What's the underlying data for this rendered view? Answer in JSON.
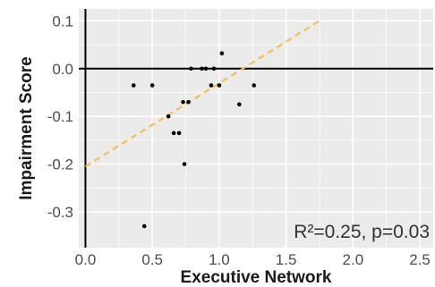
{
  "chart_data": {
    "type": "scatter",
    "xlabel": "Executive Network",
    "ylabel": "Impairment Score",
    "xlim": [
      -0.05,
      2.6
    ],
    "ylim": [
      -0.375,
      0.125
    ],
    "x_ticks": [
      "0.0",
      "0.5",
      "1.0",
      "1.5",
      "2.0",
      "2.5"
    ],
    "y_ticks": [
      "0.1",
      "0.0",
      "-0.1",
      "-0.2",
      "-0.3"
    ],
    "grid": true,
    "reference_lines": [
      {
        "axis": "x",
        "value": 0
      },
      {
        "axis": "y",
        "value": 0
      }
    ],
    "points": [
      {
        "x": 0.36,
        "y": -0.035
      },
      {
        "x": 0.44,
        "y": -0.33
      },
      {
        "x": 0.5,
        "y": -0.035
      },
      {
        "x": 0.62,
        "y": -0.1
      },
      {
        "x": 0.66,
        "y": -0.135
      },
      {
        "x": 0.7,
        "y": -0.135
      },
      {
        "x": 0.73,
        "y": -0.07
      },
      {
        "x": 0.74,
        "y": -0.2
      },
      {
        "x": 0.77,
        "y": -0.07
      },
      {
        "x": 0.79,
        "y": 0.0
      },
      {
        "x": 0.87,
        "y": 0.0
      },
      {
        "x": 0.9,
        "y": 0.0
      },
      {
        "x": 0.94,
        "y": -0.035
      },
      {
        "x": 0.96,
        "y": 0.0
      },
      {
        "x": 1.0,
        "y": -0.035
      },
      {
        "x": 1.02,
        "y": 0.032
      },
      {
        "x": 1.15,
        "y": -0.075
      },
      {
        "x": 1.26,
        "y": -0.035
      }
    ],
    "trendline": {
      "x": [
        0.0,
        1.75
      ],
      "y": [
        -0.205,
        0.1
      ],
      "style": "dashed",
      "color": "#f5be50"
    },
    "annotation": "R²=0.25, p=0.03",
    "colors": {
      "panel": "#ebebeb",
      "grid": "#ffffff",
      "points": "#000000",
      "axis_lines": "#000000"
    }
  }
}
